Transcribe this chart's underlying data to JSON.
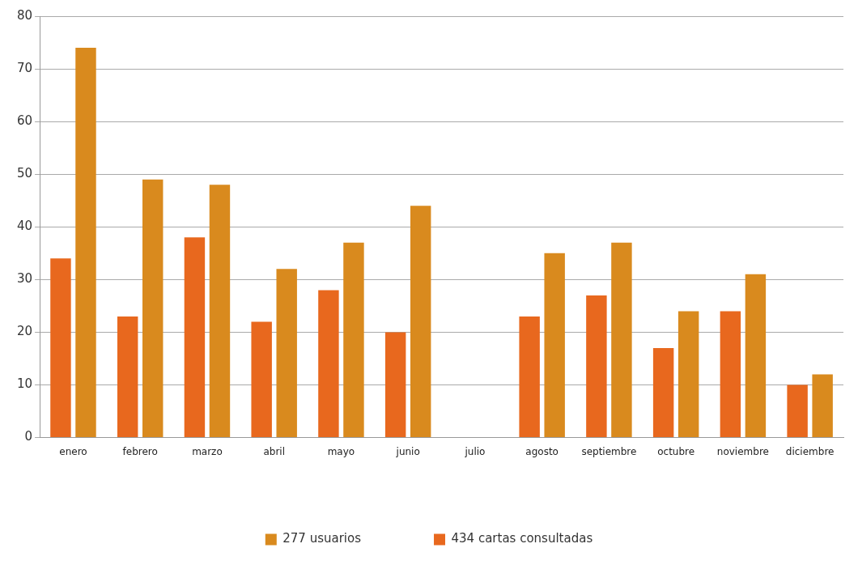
{
  "chart_data": {
    "type": "bar",
    "categories": [
      "enero",
      "febrero",
      "marzo",
      "abril",
      "mayo",
      "junio",
      "julio",
      "agosto",
      "septiembre",
      "octubre",
      "noviembre",
      "diciembre"
    ],
    "series": [
      {
        "name": "434 cartas consultadas",
        "color": "#e8681e",
        "values": [
          34,
          23,
          38,
          22,
          28,
          20,
          null,
          23,
          27,
          17,
          24,
          10
        ]
      },
      {
        "name": "277 usuarios",
        "color": "#d98a1e",
        "values": [
          74,
          49,
          48,
          32,
          37,
          44,
          null,
          35,
          37,
          24,
          31,
          12
        ]
      }
    ],
    "ylim": [
      0,
      80
    ],
    "yticks": [
      0,
      10,
      20,
      30,
      40,
      50,
      60,
      70,
      80
    ],
    "grid": "y",
    "legend": "bottom"
  }
}
